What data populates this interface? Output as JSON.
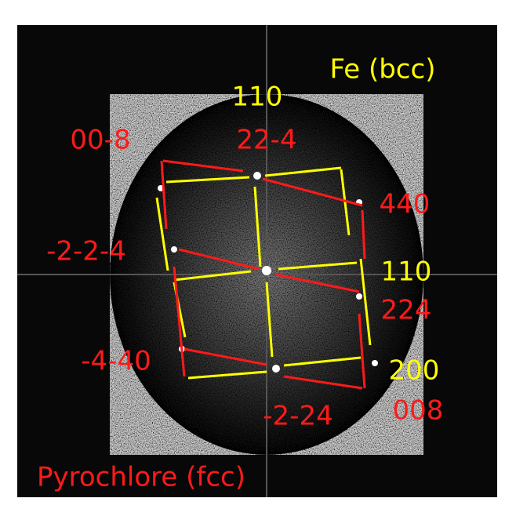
{
  "labels": {
    "phase_bcc": "Fe (bcc)",
    "phase_fcc": "Pyrochlore (fcc)",
    "top_bcc": "110",
    "top_fcc": "22-4",
    "upper_left_fcc": "00-8",
    "upper_right_fcc": "440",
    "middle_left_fcc": "-2-2-4",
    "middle_right_bcc": "110",
    "middle_right_fcc": "224",
    "lower_left_fcc": "-4-40",
    "lower_right_bcc": "200",
    "lower_right_fcc": "008",
    "bottom_fcc": "-2-24"
  }
}
